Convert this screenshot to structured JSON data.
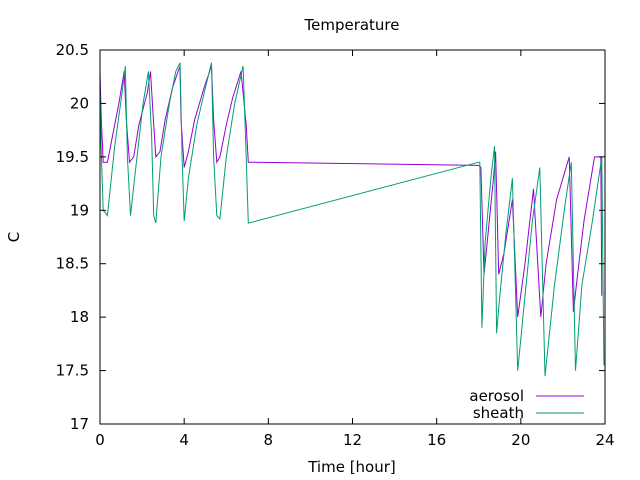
{
  "chart_data": {
    "type": "line",
    "title": "Temperature",
    "xlabel": "Time [hour]",
    "ylabel": "C",
    "xlim": [
      0,
      24
    ],
    "ylim": [
      17,
      20.5
    ],
    "xticks": [
      0,
      4,
      8,
      12,
      16,
      20,
      24
    ],
    "yticks": [
      17,
      17.5,
      18,
      18.5,
      19,
      19.5,
      20,
      20.5
    ],
    "xtick_labels": [
      "0",
      "4",
      "8",
      "12",
      "16",
      "20",
      "24"
    ],
    "ytick_labels": [
      "17",
      "17.5",
      "18",
      "18.5",
      "19",
      "19.5",
      "20",
      "20.5"
    ],
    "grid": false,
    "legend_position": "bottom-right",
    "series": [
      {
        "name": "aerosol",
        "color": "#9400d3",
        "x": [
          0,
          0.05,
          0.15,
          0.35,
          0.6,
          0.9,
          1.15,
          1.25,
          1.4,
          1.6,
          1.85,
          2.25,
          2.4,
          2.55,
          2.65,
          2.85,
          3.1,
          3.45,
          3.8,
          3.85,
          4.0,
          4.2,
          4.5,
          4.95,
          5.3,
          5.4,
          5.55,
          5.7,
          6.0,
          6.3,
          6.7,
          6.95,
          7.05,
          18.0,
          18.1,
          18.25,
          18.4,
          18.7,
          18.8,
          18.95,
          19.2,
          19.6,
          19.85,
          20.2,
          20.6,
          20.95,
          21.2,
          21.7,
          22.3,
          22.5,
          22.7,
          23.0,
          23.5,
          23.8,
          23.85
        ],
        "y": [
          20.3,
          19.9,
          19.45,
          19.45,
          19.7,
          20.0,
          20.3,
          19.85,
          19.45,
          19.5,
          19.8,
          20.1,
          20.3,
          19.8,
          19.5,
          19.55,
          19.85,
          20.15,
          20.35,
          19.85,
          19.4,
          19.55,
          19.85,
          20.15,
          20.35,
          19.85,
          19.45,
          19.5,
          19.8,
          20.05,
          20.3,
          19.8,
          19.45,
          19.42,
          19.4,
          18.4,
          18.7,
          19.3,
          19.55,
          18.4,
          18.6,
          19.1,
          18.0,
          18.5,
          19.2,
          18.0,
          18.5,
          19.1,
          19.5,
          18.05,
          18.4,
          18.9,
          19.5,
          19.5,
          18.2
        ]
      },
      {
        "name": "sheath",
        "color": "#009e73",
        "x": [
          0,
          0.05,
          0.15,
          0.35,
          0.7,
          1.05,
          1.2,
          1.3,
          1.45,
          1.7,
          2.05,
          2.3,
          2.45,
          2.55,
          2.65,
          2.9,
          3.3,
          3.6,
          3.8,
          3.9,
          4.0,
          4.2,
          4.6,
          4.95,
          5.3,
          5.4,
          5.55,
          5.7,
          6.0,
          6.4,
          6.8,
          6.95,
          7.05,
          18.0,
          18.05,
          18.15,
          18.3,
          18.6,
          18.75,
          18.85,
          19.0,
          19.3,
          19.6,
          19.85,
          20.2,
          20.55,
          20.9,
          21.15,
          21.6,
          22.1,
          22.4,
          22.6,
          22.9,
          23.4,
          23.85,
          23.95
        ],
        "y": [
          20.2,
          19.6,
          19.0,
          18.95,
          19.6,
          20.1,
          20.35,
          19.5,
          18.95,
          19.4,
          20.0,
          20.3,
          19.7,
          18.95,
          18.88,
          19.5,
          20.0,
          20.3,
          20.38,
          19.5,
          18.9,
          19.3,
          19.8,
          20.1,
          20.38,
          19.5,
          18.95,
          18.92,
          19.5,
          20.0,
          20.35,
          19.5,
          18.88,
          19.45,
          19.45,
          17.9,
          18.7,
          19.35,
          19.6,
          17.85,
          18.2,
          18.8,
          19.3,
          17.5,
          18.2,
          18.9,
          19.4,
          17.45,
          18.3,
          19.05,
          19.45,
          17.5,
          18.3,
          18.9,
          19.5,
          17.55
        ]
      }
    ]
  }
}
